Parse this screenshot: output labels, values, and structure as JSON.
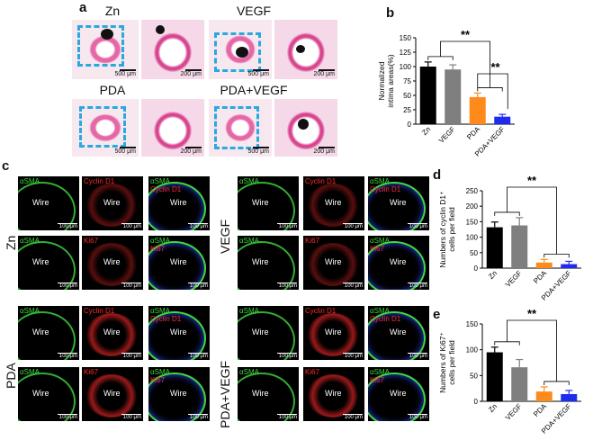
{
  "panel_labels": {
    "a": "a",
    "b": "b",
    "c": "c",
    "d": "d",
    "e": "e"
  },
  "panel_a": {
    "groups": [
      {
        "title": "Zn",
        "scale_left": "500 μm",
        "scale_right": "200 μm"
      },
      {
        "title": "VEGF",
        "scale_left": "500 μm",
        "scale_right": "200 μm"
      },
      {
        "title": "PDA",
        "scale_left": "500 μm",
        "scale_right": "200 μm"
      },
      {
        "title": "PDA+VEGF",
        "scale_left": "500 μm",
        "scale_right": "200 μm"
      }
    ],
    "colors": {
      "stain": "#e567a6",
      "dash": "#2aa9e0"
    }
  },
  "panel_c": {
    "groups": [
      {
        "name": "Zn",
        "rows": [
          {
            "cells": [
              {
                "label": "αSMA"
              },
              {
                "label": "Cyclin D1"
              },
              {
                "label": "αSMA",
                "label2": "Cyclin D1"
              }
            ]
          },
          {
            "cells": [
              {
                "label": "αSMA"
              },
              {
                "label": "Ki67"
              },
              {
                "label": "αSMA",
                "label2": "Ki67"
              }
            ]
          }
        ]
      },
      {
        "name": "VEGF",
        "rows": [
          {
            "cells": [
              {
                "label": "αSMA"
              },
              {
                "label": "Cyclin D1"
              },
              {
                "label": "αSMA",
                "label2": "Cyclin D1"
              }
            ]
          },
          {
            "cells": [
              {
                "label": "αSMA"
              },
              {
                "label": "Ki67"
              },
              {
                "label": "αSMA",
                "label2": "Ki67"
              }
            ]
          }
        ]
      },
      {
        "name": "PDA",
        "rows": [
          {
            "cells": [
              {
                "label": "αSMA"
              },
              {
                "label": "Cyclin D1"
              },
              {
                "label": "αSMA",
                "label2": "Cyclin D1"
              }
            ]
          },
          {
            "cells": [
              {
                "label": "αSMA"
              },
              {
                "label": "Ki67"
              },
              {
                "label": "αSMA",
                "label2": "Ki67"
              }
            ]
          }
        ]
      },
      {
        "name": "PDA+VEGF",
        "rows": [
          {
            "cells": [
              {
                "label": "αSMA"
              },
              {
                "label": "Cyclin D1"
              },
              {
                "label": "αSMA",
                "label2": "Cyclin D1"
              }
            ]
          },
          {
            "cells": [
              {
                "label": "αSMA"
              },
              {
                "label": "Ki67"
              },
              {
                "label": "αSMA",
                "label2": "Ki67"
              }
            ]
          }
        ]
      }
    ],
    "wire_label": "Wire",
    "scale": "100 μm",
    "colors": {
      "green": "#3fd93f",
      "red": "#ff2a2a",
      "blue": "#2b4cff"
    }
  },
  "chart_data": [
    {
      "id": "b",
      "type": "bar",
      "categories": [
        "Zn",
        "VEGF",
        "PDA",
        "PDA+VEGF"
      ],
      "values": [
        100,
        95,
        47,
        13
      ],
      "errors": [
        8,
        8,
        7,
        4
      ],
      "colors": [
        "#000000",
        "#7f7f7f",
        "#ff8a1c",
        "#1f2cf0"
      ],
      "ylabel": "Normalized\nintima areas(%)",
      "ylim": [
        0,
        150
      ],
      "yticks": [
        0,
        25,
        50,
        75,
        100,
        125,
        150
      ],
      "significance": [
        {
          "label": "**",
          "from": "Zn/VEGF",
          "to": "PDA/PDA+VEGF"
        },
        {
          "label": "**",
          "from": "PDA",
          "to": "PDA+VEGF"
        }
      ]
    },
    {
      "id": "d",
      "type": "bar",
      "categories": [
        "Zn",
        "VEGF",
        "PDA",
        "PDA+VEGF"
      ],
      "values": [
        132,
        138,
        18,
        13
      ],
      "errors": [
        17,
        25,
        10,
        9
      ],
      "colors": [
        "#000000",
        "#7f7f7f",
        "#ff8a1c",
        "#1f2cf0"
      ],
      "ylabel": "Numbers of cyclin D1⁺\ncells per field",
      "ylim": [
        0,
        250
      ],
      "yticks": [
        0,
        50,
        100,
        150,
        200,
        250
      ],
      "significance": [
        {
          "label": "**",
          "from": "Zn/VEGF",
          "to": "PDA/PDA+VEGF"
        }
      ]
    },
    {
      "id": "e",
      "type": "bar",
      "categories": [
        "Zn",
        "VEGF",
        "PDA",
        "PDA+VEGF"
      ],
      "values": [
        95,
        66,
        19,
        14
      ],
      "errors": [
        10,
        15,
        9,
        7
      ],
      "colors": [
        "#000000",
        "#7f7f7f",
        "#ff8a1c",
        "#1f2cf0"
      ],
      "ylabel": "Numbers of Ki67⁺\ncells per field",
      "ylim": [
        0,
        150
      ],
      "yticks": [
        0,
        50,
        100,
        150
      ],
      "significance": [
        {
          "label": "**",
          "from": "Zn/VEGF",
          "to": "PDA/PDA+VEGF"
        }
      ]
    }
  ]
}
